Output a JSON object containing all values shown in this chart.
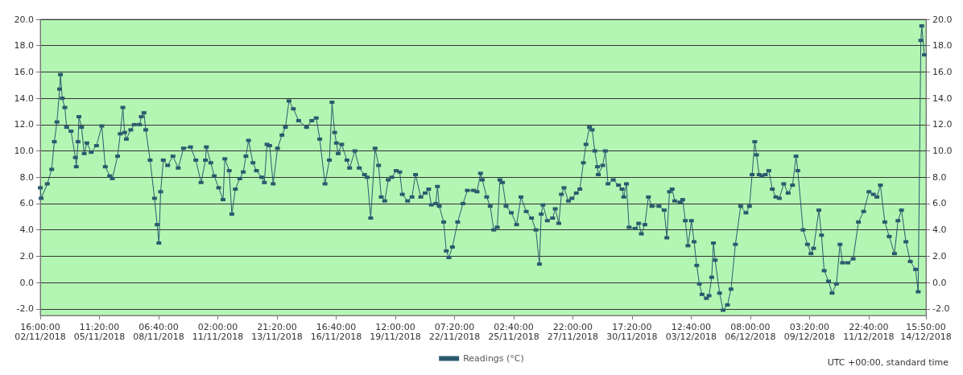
{
  "chart_data": {
    "type": "line",
    "x": [
      "2018-11-02T16:00",
      "2018-11-02T17:00",
      "2018-11-03T00:00",
      "2018-11-03T05:00",
      "2018-11-03T08:00",
      "2018-11-03T11:00",
      "2018-11-03T14:00",
      "2018-11-03T15:00",
      "2018-11-03T17:00",
      "2018-11-03T20:00",
      "2018-11-03T22:00",
      "2018-11-04T03:00",
      "2018-11-04T08:00",
      "2018-11-04T09:00",
      "2018-11-04T11:00",
      "2018-11-04T12:00",
      "2018-11-04T15:00",
      "2018-11-04T18:00",
      "2018-11-04T21:00",
      "2018-11-05T02:00",
      "2018-11-05T08:00",
      "2018-11-05T14:00",
      "2018-11-05T18:00",
      "2018-11-05T23:00",
      "2018-11-06T02:00",
      "2018-11-06T08:00",
      "2018-11-06T11:00",
      "2018-11-06T14:00",
      "2018-11-06T16:00",
      "2018-11-06T18:00",
      "2018-11-06T23:00",
      "2018-11-07T03:00",
      "2018-11-07T09:00",
      "2018-11-07T11:00",
      "2018-11-07T14:00",
      "2018-11-07T16:00",
      "2018-11-07T21:00",
      "2018-11-08T02:00",
      "2018-11-08T05:00",
      "2018-11-08T07:00",
      "2018-11-08T09:00",
      "2018-11-08T12:00",
      "2018-11-08T17:00",
      "2018-11-08T23:00",
      "2018-11-09T05:00",
      "2018-11-09T11:00",
      "2018-11-09T19:00",
      "2018-11-10T01:00",
      "2018-11-10T07:00",
      "2018-11-10T12:00",
      "2018-11-10T13:00",
      "2018-11-10T18:00",
      "2018-11-10T22:00",
      "2018-11-11T03:00",
      "2018-11-11T08:00",
      "2018-11-11T10:00",
      "2018-11-11T15:00",
      "2018-11-11T18:00",
      "2018-11-11T22:00",
      "2018-11-12T03:00",
      "2018-11-12T07:00",
      "2018-11-12T10:00",
      "2018-11-12T13:00",
      "2018-11-12T18:00",
      "2018-11-12T22:00",
      "2018-11-13T04:00",
      "2018-11-13T07:00",
      "2018-11-13T10:00",
      "2018-11-13T13:00",
      "2018-11-13T17:00",
      "2018-11-13T22:00",
      "2018-11-14T03:00",
      "2018-11-14T07:00",
      "2018-11-14T11:00",
      "2018-11-14T16:00",
      "2018-11-14T22:00",
      "2018-11-15T07:00",
      "2018-11-15T13:00",
      "2018-11-15T18:00",
      "2018-11-15T22:00",
      "2018-11-16T04:00",
      "2018-11-16T09:00",
      "2018-11-16T12:00",
      "2018-11-16T15:00",
      "2018-11-16T17:00",
      "2018-11-16T19:00",
      "2018-11-16T23:00",
      "2018-11-17T05:00",
      "2018-11-17T08:00",
      "2018-11-17T14:00",
      "2018-11-17T19:00",
      "2018-11-18T01:00",
      "2018-11-18T04:00",
      "2018-11-18T08:00",
      "2018-11-18T13:00",
      "2018-11-18T17:00",
      "2018-11-18T20:00",
      "2018-11-19T00:00",
      "2018-11-19T04:00",
      "2018-11-19T08:00",
      "2018-11-19T13:00",
      "2018-11-19T17:00",
      "2018-11-19T20:00",
      "2018-11-20T02:00",
      "2018-11-20T07:00",
      "2018-11-20T11:00",
      "2018-11-20T17:00",
      "2018-11-20T22:00",
      "2018-11-21T02:00",
      "2018-11-21T05:00",
      "2018-11-21T10:00",
      "2018-11-21T12:00",
      "2018-11-21T14:00",
      "2018-11-21T19:00",
      "2018-11-21T22:00",
      "2018-11-22T01:00",
      "2018-11-22T05:00",
      "2018-11-22T11:00",
      "2018-11-22T17:00",
      "2018-11-22T22:00",
      "2018-11-23T05:00",
      "2018-11-23T09:00",
      "2018-11-23T13:00",
      "2018-11-23T15:00",
      "2018-11-23T20:00",
      "2018-11-24T00:00",
      "2018-11-24T04:00",
      "2018-11-24T08:00",
      "2018-11-24T11:00",
      "2018-11-24T14:00",
      "2018-11-24T18:00",
      "2018-11-25T00:00",
      "2018-11-25T06:00",
      "2018-11-25T11:00",
      "2018-11-25T17:00",
      "2018-11-25T23:00",
      "2018-11-26T04:00",
      "2018-11-26T08:00",
      "2018-11-26T10:00",
      "2018-11-26T12:00",
      "2018-11-26T17:00",
      "2018-11-26T23:00",
      "2018-11-27T02:00",
      "2018-11-27T06:00",
      "2018-11-27T09:00",
      "2018-11-27T12:00",
      "2018-11-27T17:00",
      "2018-11-27T21:00",
      "2018-11-28T02:00",
      "2018-11-28T06:00",
      "2018-11-28T10:00",
      "2018-11-28T13:00",
      "2018-11-28T17:00",
      "2018-11-28T20:00",
      "2018-11-28T23:00",
      "2018-11-29T02:00",
      "2018-11-29T03:00",
      "2018-11-29T08:00",
      "2018-11-29T11:00",
      "2018-11-29T14:00",
      "2018-11-29T20:00",
      "2018-11-30T02:00",
      "2018-11-30T06:00",
      "2018-11-30T08:00",
      "2018-11-30T11:00",
      "2018-11-30T14:00",
      "2018-11-30T21:00",
      "2018-12-01T01:00",
      "2018-12-01T04:00",
      "2018-12-01T08:00",
      "2018-12-01T12:00",
      "2018-12-01T16:00",
      "2018-12-02T00:00",
      "2018-12-02T06:00",
      "2018-12-02T09:00",
      "2018-12-02T12:00",
      "2018-12-02T15:00",
      "2018-12-02T18:00",
      "2018-12-03T00:00",
      "2018-12-03T03:00",
      "2018-12-03T06:00",
      "2018-12-03T09:00",
      "2018-12-03T13:00",
      "2018-12-03T16:00",
      "2018-12-03T19:00",
      "2018-12-03T22:00",
      "2018-12-04T01:00",
      "2018-12-04T06:00",
      "2018-12-04T09:00",
      "2018-12-04T12:00",
      "2018-12-04T14:00",
      "2018-12-04T16:00",
      "2018-12-04T21:00",
      "2018-12-05T01:00",
      "2018-12-05T06:00",
      "2018-12-05T10:00",
      "2018-12-05T15:00",
      "2018-12-05T21:00",
      "2018-12-06T03:00",
      "2018-12-06T07:00",
      "2018-12-06T10:00",
      "2018-12-06T13:00",
      "2018-12-06T15:00",
      "2018-12-06T18:00",
      "2018-12-06T21:00",
      "2018-12-07T01:00",
      "2018-12-07T05:00",
      "2018-12-07T09:00",
      "2018-12-07T13:00",
      "2018-12-07T17:00",
      "2018-12-07T22:00",
      "2018-12-08T03:00",
      "2018-12-08T08:00",
      "2018-12-08T12:00",
      "2018-12-08T14:00",
      "2018-12-08T20:00",
      "2018-12-09T01:00",
      "2018-12-09T05:00",
      "2018-12-09T08:00",
      "2018-12-09T14:00",
      "2018-12-09T17:00",
      "2018-12-09T20:00",
      "2018-12-10T01:00",
      "2018-12-10T05:00",
      "2018-12-10T10:00",
      "2018-12-10T14:00",
      "2018-12-10T17:00",
      "2018-12-10T23:00",
      "2018-12-11T05:00",
      "2018-12-11T11:00",
      "2018-12-11T17:00",
      "2018-12-11T23:00",
      "2018-12-12T04:00",
      "2018-12-12T08:00",
      "2018-12-12T12:00",
      "2018-12-12T17:00",
      "2018-12-12T22:00",
      "2018-12-13T04:00",
      "2018-12-13T08:00",
      "2018-12-13T12:00",
      "2018-12-13T17:00",
      "2018-12-13T22:00",
      "2018-12-14T04:00",
      "2018-12-14T07:00",
      "2018-12-14T10:00",
      "2018-12-14T11:00",
      "2018-12-14T14:00"
    ],
    "series": [
      {
        "name": "Readings (°C)",
        "color": "#2b5a6e",
        "values": [
          7.2,
          6.4,
          7.5,
          8.6,
          10.7,
          12.2,
          14.7,
          15.8,
          14.0,
          13.3,
          11.8,
          11.5,
          9.5,
          8.8,
          10.7,
          12.6,
          11.8,
          9.8,
          10.6,
          9.9,
          10.4,
          11.9,
          8.8,
          8.1,
          7.9,
          9.6,
          11.3,
          13.3,
          11.4,
          10.9,
          11.6,
          12.0,
          12.0,
          12.6,
          12.9,
          11.6,
          9.3,
          6.4,
          4.4,
          3.0,
          6.9,
          9.3,
          8.9,
          9.6,
          8.7,
          10.2,
          10.3,
          9.3,
          7.6,
          9.3,
          10.3,
          9.1,
          8.1,
          7.2,
          6.3,
          9.4,
          8.5,
          5.2,
          7.1,
          7.9,
          8.4,
          9.6,
          10.8,
          9.1,
          8.5,
          8.0,
          7.6,
          10.5,
          10.4,
          7.5,
          10.2,
          11.2,
          11.8,
          13.8,
          13.2,
          12.3,
          11.8,
          12.3,
          12.5,
          10.9,
          7.5,
          9.3,
          13.7,
          11.4,
          10.6,
          9.8,
          10.5,
          9.3,
          8.7,
          10.0,
          8.7,
          8.2,
          8.0,
          4.9,
          10.2,
          8.9,
          6.5,
          6.2,
          7.8,
          8.0,
          8.5,
          8.4,
          6.7,
          6.2,
          6.5,
          8.2,
          6.5,
          6.8,
          7.1,
          5.9,
          6.0,
          7.3,
          5.8,
          4.6,
          2.4,
          1.9,
          2.7,
          4.6,
          6.0,
          7.0,
          7.0,
          6.9,
          8.3,
          7.8,
          6.5,
          5.8,
          4.0,
          4.2,
          7.8,
          7.6,
          5.8,
          5.3,
          4.4,
          6.5,
          5.4,
          4.9,
          4.0,
          1.4,
          5.2,
          5.9,
          4.7,
          4.9,
          5.6,
          4.5,
          6.7,
          7.2,
          6.2,
          6.4,
          6.8,
          7.1,
          9.1,
          10.5,
          11.8,
          11.6,
          10.0,
          8.8,
          8.2,
          8.9,
          10.0,
          7.5,
          7.8,
          7.4,
          7.1,
          6.5,
          7.5,
          4.2,
          4.1,
          4.5,
          3.7,
          4.4,
          6.5,
          5.8,
          5.8,
          5.5,
          3.4,
          6.9,
          7.1,
          6.2,
          6.1,
          6.3,
          4.7,
          2.8,
          4.7,
          3.1,
          1.3,
          -0.1,
          -0.9,
          -1.2,
          -1.0,
          0.4,
          3.0,
          1.7,
          -0.8,
          -2.1,
          -1.7,
          -0.5,
          2.9,
          5.8,
          5.3,
          5.8,
          8.2,
          10.7,
          9.7,
          8.2,
          8.1,
          8.2,
          8.5,
          7.1,
          6.5,
          6.4,
          7.5,
          6.8,
          7.4,
          9.6,
          8.5,
          4.0,
          2.9,
          2.2,
          2.6,
          5.5,
          3.6,
          0.9,
          0.1,
          -0.8,
          -0.1,
          2.9,
          1.5,
          1.5,
          1.8,
          4.6,
          5.4,
          6.9,
          6.7,
          6.5,
          7.4,
          4.6,
          3.5,
          2.2,
          4.7,
          5.5,
          3.1,
          1.6,
          1.0,
          -0.7,
          18.4,
          19.5,
          17.3
        ]
      }
    ],
    "xlim": [
      "2018-11-02T16:00",
      "2018-12-14T15:50"
    ],
    "xticks": [
      {
        "value": "2018-11-02T16:00",
        "label": "16:00:00\n02/11/2018"
      },
      {
        "value": "2018-11-05T11:20",
        "label": "11:20:00\n05/11/2018"
      },
      {
        "value": "2018-11-08T06:40",
        "label": "06:40:00\n08/11/2018"
      },
      {
        "value": "2018-11-11T02:00",
        "label": "02:00:00\n11/11/2018"
      },
      {
        "value": "2018-11-13T21:20",
        "label": "21:20:00\n13/11/2018"
      },
      {
        "value": "2018-11-16T16:40",
        "label": "16:40:00\n16/11/2018"
      },
      {
        "value": "2018-11-19T12:00",
        "label": "12:00:00\n19/11/2018"
      },
      {
        "value": "2018-11-22T07:20",
        "label": "07:20:00\n22/11/2018"
      },
      {
        "value": "2018-11-25T02:40",
        "label": "02:40:00\n25/11/2018"
      },
      {
        "value": "2018-11-27T22:00",
        "label": "22:00:00\n27/11/2018"
      },
      {
        "value": "2018-11-30T17:20",
        "label": "17:20:00\n30/11/2018"
      },
      {
        "value": "2018-12-03T12:40",
        "label": "12:40:00\n03/12/2018"
      },
      {
        "value": "2018-12-06T08:00",
        "label": "08:00:00\n06/12/2018"
      },
      {
        "value": "2018-12-09T03:20",
        "label": "03:20:00\n09/12/2018"
      },
      {
        "value": "2018-12-11T22:40",
        "label": "22:40:00\n11/12/2018"
      },
      {
        "value": "2018-12-14T15:50",
        "label": "15:50:00\n14/12/2018"
      }
    ],
    "ylim": [
      -2.5,
      20
    ],
    "yticks": [
      {
        "value": -2,
        "label": "-2.0"
      },
      {
        "value": 0,
        "label": "0.0"
      },
      {
        "value": 2,
        "label": "2.0"
      },
      {
        "value": 4,
        "label": "4.0"
      },
      {
        "value": 6,
        "label": "6.0"
      },
      {
        "value": 8,
        "label": "8.0"
      },
      {
        "value": 10,
        "label": "10.0"
      },
      {
        "value": 12,
        "label": "12.0"
      },
      {
        "value": 14,
        "label": "14.0"
      },
      {
        "value": 16,
        "label": "16.0"
      },
      {
        "value": 18,
        "label": "18.0"
      },
      {
        "value": 20,
        "label": "20.0"
      }
    ],
    "y2lim": [
      -2.5,
      20
    ],
    "y2ticks": [
      {
        "value": -2,
        "label": "-2.0"
      },
      {
        "value": 0,
        "label": "0.0"
      },
      {
        "value": 2,
        "label": "2.0"
      },
      {
        "value": 4,
        "label": "4.0"
      },
      {
        "value": 6,
        "label": "6.0"
      },
      {
        "value": 8,
        "label": "8.0"
      },
      {
        "value": 10,
        "label": "10.0"
      },
      {
        "value": 12,
        "label": "12.0"
      },
      {
        "value": 14,
        "label": "14.0"
      },
      {
        "value": 16,
        "label": "16.0"
      },
      {
        "value": 18,
        "label": "18.0"
      },
      {
        "value": 20,
        "label": "20.0"
      }
    ],
    "annotations": [
      "UTC +00:00, standard time"
    ],
    "grid": "y",
    "legend": "bottom",
    "marker": "square",
    "line_style": "solid"
  }
}
